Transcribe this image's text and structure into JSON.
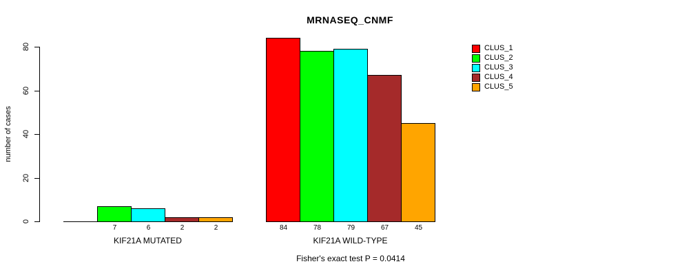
{
  "chart_data": {
    "type": "bar",
    "title": "MRNASEQ_CNMF",
    "ylabel": "number of cases",
    "xlabel": "",
    "ylim": [
      0,
      80
    ],
    "yticks": [
      0,
      20,
      40,
      60,
      80
    ],
    "grid": false,
    "legend_position": "right-top",
    "categories": [
      "KIF21A MUTATED",
      "KIF21A WILD-TYPE"
    ],
    "series": [
      {
        "name": "CLUS_1",
        "color": "#FF0000",
        "values": [
          0,
          84
        ]
      },
      {
        "name": "CLUS_2",
        "color": "#00FF00",
        "values": [
          7,
          78
        ]
      },
      {
        "name": "CLUS_3",
        "color": "#00FFFF",
        "values": [
          6,
          79
        ]
      },
      {
        "name": "CLUS_4",
        "color": "#A52A2A",
        "values": [
          2,
          67
        ]
      },
      {
        "name": "CLUS_5",
        "color": "#FFA500",
        "values": [
          2,
          45
        ]
      }
    ],
    "value_labels": [
      [
        "",
        "7",
        "6",
        "2",
        "2"
      ],
      [
        "84",
        "78",
        "79",
        "67",
        "45"
      ]
    ],
    "annotation": "Fisher's exact test P = 0.0414",
    "axis_color": "#000000",
    "bar_border_color": "#000000"
  }
}
